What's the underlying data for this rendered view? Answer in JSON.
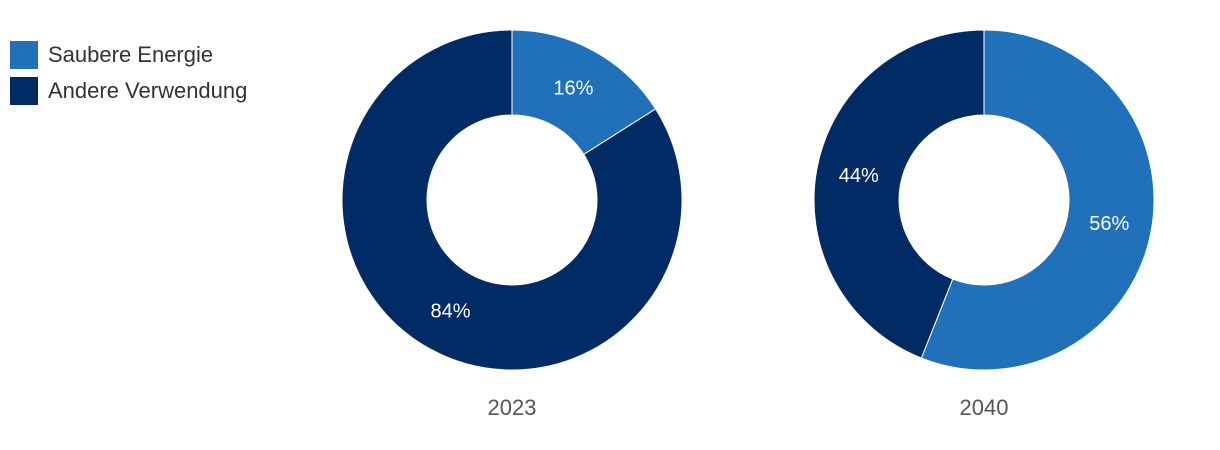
{
  "colors": {
    "Saubere Energie": "#2170BA",
    "Andere Verwendung": "#002B65"
  },
  "legend": [
    {
      "label": "Saubere Energie",
      "color": "#2170BA"
    },
    {
      "label": "Andere Verwendung",
      "color": "#002B65"
    }
  ],
  "chart_data": [
    {
      "type": "pie",
      "title": "2023",
      "legend_position": "top-left",
      "categories": [
        "Saubere Energie",
        "Andere Verwendung"
      ],
      "values": [
        16,
        84
      ],
      "labels": [
        "16%",
        "84%"
      ]
    },
    {
      "type": "pie",
      "title": "2040",
      "legend_position": "top-left",
      "categories": [
        "Saubere Energie",
        "Andere Verwendung"
      ],
      "values": [
        56,
        44
      ],
      "labels": [
        "56%",
        "44%"
      ]
    }
  ]
}
